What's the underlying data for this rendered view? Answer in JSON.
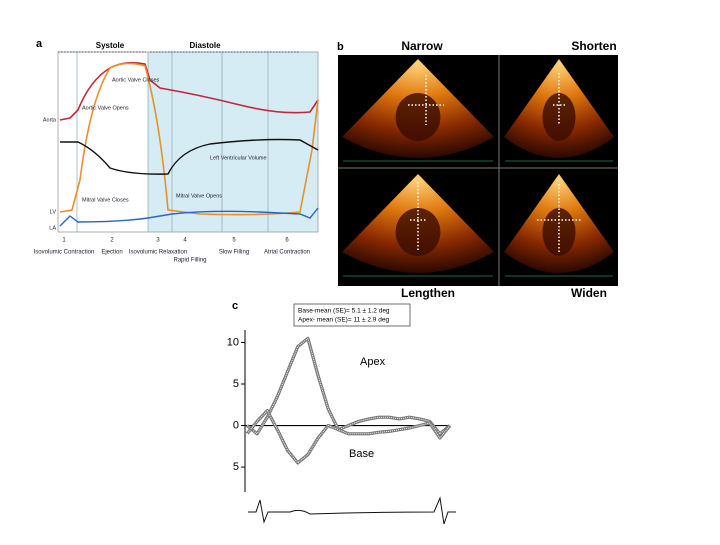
{
  "panel_a": {
    "label": "a",
    "systole": "Systole",
    "diastole": "Diastole",
    "pressure_labels": [
      "Aorta",
      "LV",
      "LA"
    ],
    "annotations": [
      "Aortic Valve Opens",
      "Aortic Valve Closes",
      "Mitral Valve Closes",
      "Mitral Valve Opens",
      "Left Ventricular Volume"
    ],
    "phases": [
      {
        "number": "1",
        "name": "Isovolumic Contraction"
      },
      {
        "number": "2",
        "name": "Ejection"
      },
      {
        "number": "3",
        "name": "Isovolumic Relaxation"
      },
      {
        "number": "4",
        "name": "Rapid Filling"
      },
      {
        "number": "5",
        "name": "Slow Filling"
      },
      {
        "number": "6",
        "name": "Atrial Contraction"
      }
    ]
  },
  "panel_b": {
    "label": "b",
    "views": [
      "Narrow",
      "Shorten",
      "Lengthen",
      "Widen"
    ]
  },
  "chart_data": {
    "type": "line",
    "label": "c",
    "notes": [
      "Base-mean (SE)= 5.1 ± 1.2 deg",
      "Apex- mean (SE)= 11 ± 2.9 deg"
    ],
    "series": [
      {
        "name": "Apex",
        "color": "#777777",
        "values": [
          0,
          -1,
          1,
          3.5,
          6.5,
          9.5,
          10.5,
          6,
          2,
          -0.5,
          0,
          0.5,
          0.8,
          1,
          1,
          0.8,
          1,
          0.8,
          0.5,
          -1,
          0
        ]
      },
      {
        "name": "Base",
        "color": "#777777",
        "values": [
          -1,
          0.5,
          1.8,
          -0.5,
          -3,
          -4.5,
          -3.5,
          -1.5,
          0,
          -0.5,
          -1,
          -1,
          -1,
          -0.8,
          -0.7,
          -0.5,
          -0.3,
          0,
          0.3,
          -1.5,
          0
        ]
      }
    ],
    "ylim": [
      -8,
      11.5
    ],
    "yticks": [
      10,
      5,
      0,
      {
        "value": -5,
        "label": "5"
      }
    ]
  }
}
